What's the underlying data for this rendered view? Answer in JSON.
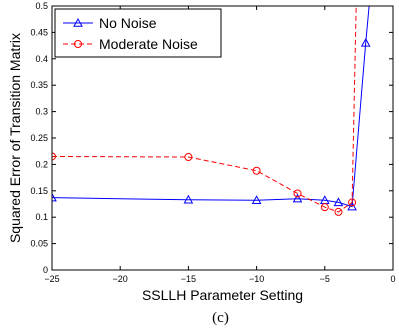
{
  "chart_data": {
    "type": "line",
    "xlabel": "SSLLH Parameter Setting",
    "ylabel": "Squared Error of Transition Matrix",
    "caption": "(c)",
    "xlim": [
      -25,
      0
    ],
    "ylim": [
      0,
      0.5
    ],
    "x_ticks": [
      -25,
      -20,
      -15,
      -10,
      -5,
      0
    ],
    "x_tick_labels": [
      "−25",
      "−20",
      "−15",
      "−10",
      "−5",
      "0"
    ],
    "y_ticks": [
      0,
      0.05,
      0.1,
      0.15,
      0.2,
      0.25,
      0.3,
      0.35,
      0.4,
      0.45,
      0.5
    ],
    "y_tick_labels": [
      "0",
      "0.05",
      "0.1",
      "0.15",
      "0.2",
      "0.25",
      "0.3",
      "0.35",
      "0.4",
      "0.45",
      "0.5"
    ],
    "grid": false,
    "legend_position": "top-left",
    "series": [
      {
        "name": "No Noise",
        "color": "#0000ff",
        "line": "solid",
        "marker": "triangle",
        "points": [
          [
            -25,
            0.137
          ],
          [
            -15,
            0.133
          ],
          [
            -10,
            0.132
          ],
          [
            -7,
            0.135
          ],
          [
            -5,
            0.132
          ],
          [
            -4,
            0.128
          ],
          [
            -3,
            0.12
          ],
          [
            -2,
            0.43
          ]
        ],
        "continuation": [
          [
            -2,
            0.43
          ],
          [
            -1.75,
            0.5
          ]
        ]
      },
      {
        "name": "Moderate Noise",
        "color": "#ff0000",
        "line": "dashed",
        "marker": "circle",
        "points": [
          [
            -25,
            0.215
          ],
          [
            -15,
            0.214
          ],
          [
            -10,
            0.188
          ],
          [
            -7,
            0.145
          ],
          [
            -5,
            0.119
          ],
          [
            -4,
            0.11
          ],
          [
            -3,
            0.128
          ]
        ],
        "continuation": [
          [
            -3,
            0.128
          ],
          [
            -2.7,
            0.5
          ]
        ]
      }
    ]
  }
}
